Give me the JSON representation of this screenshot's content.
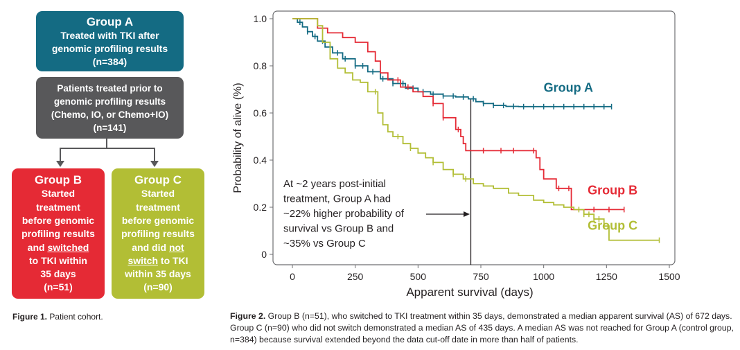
{
  "cohort": {
    "groupA": {
      "title": "Group A",
      "lines": [
        "Treated with TKI after",
        "genomic profiling results",
        "(n=384)"
      ]
    },
    "prior": {
      "lines": [
        "Patients treated prior to",
        "genomic profiling results",
        "(Chemo, IO, or Chemo+IO)",
        "(n=141)"
      ]
    },
    "groupB": {
      "title": "Group B",
      "line1": "Started",
      "line2": "treatment",
      "line3": "before genomic",
      "line4": "profiling results",
      "line5a": "and ",
      "line5b": "switched",
      "line6": "to TKI within",
      "line7": "35 days",
      "line8": "(n=51)"
    },
    "groupC": {
      "title": "Group C",
      "line1": "Started",
      "line2": "treatment",
      "line3": "before genomic",
      "line4": "profiling results",
      "line5": "and did ",
      "line5u": "not",
      "line6u": "switch",
      "line6b": " to TKI",
      "line7": "within 35 days",
      "line8": "(n=90)"
    },
    "colors": {
      "groupA": "#146b83",
      "prior": "#58585a",
      "groupB": "#e52a35",
      "groupC": "#b2be35"
    }
  },
  "figure1_caption": {
    "label": "Figure 1.",
    "text": " Patient cohort."
  },
  "figure2_caption": {
    "label": "Figure 2.",
    "text": " Group B (n=51), who switched to TKI treatment within 35 days, demonstrated a median apparent survival (AS) of 672 days. Group C (n=90) who did not switch demonstrated a median AS of 435 days. A median AS was not reached for Group A (control group, n=384) because survival extended beyond the data cut-off date in more than half of patients."
  },
  "chart_data": {
    "type": "line",
    "title": "",
    "xlabel": "Apparent survival (days)",
    "ylabel": "Probability of alive (%)",
    "xlim": [
      0,
      1500
    ],
    "ylim": [
      0,
      1.0
    ],
    "x_ticks": [
      0,
      250,
      500,
      750,
      1000,
      1250,
      1500
    ],
    "y_ticks": [
      0,
      0.2,
      0.4,
      0.6,
      0.8,
      1.0
    ],
    "y_tick_labels": [
      "0",
      "0.2",
      "0.4",
      "0.6",
      "0.8",
      "1.0"
    ],
    "annotation": [
      "At ~2 years post-initial",
      "treatment, Group A had",
      "~22% higher probability of",
      "survival vs Group B and",
      "~35% vs Group C"
    ],
    "reference_line_x": 710,
    "series": [
      {
        "name": "Group A",
        "color": "#146b83",
        "label_pos": [
          1000,
          0.69
        ],
        "x": [
          0,
          20,
          40,
          60,
          80,
          100,
          130,
          160,
          200,
          250,
          300,
          350,
          400,
          450,
          500,
          550,
          600,
          650,
          700,
          730,
          760,
          800,
          850,
          900,
          1000,
          1100,
          1200,
          1270
        ],
        "y": [
          1.0,
          0.985,
          0.965,
          0.945,
          0.925,
          0.905,
          0.88,
          0.855,
          0.83,
          0.8,
          0.775,
          0.745,
          0.725,
          0.705,
          0.69,
          0.68,
          0.672,
          0.668,
          0.66,
          0.648,
          0.64,
          0.632,
          0.628,
          0.627,
          0.627,
          0.627,
          0.627,
          0.627
        ],
        "censor_x": [
          30,
          60,
          90,
          120,
          150,
          180,
          210,
          250,
          280,
          320,
          360,
          400,
          440,
          480,
          520,
          560,
          600,
          640,
          680,
          720,
          760,
          800,
          840,
          880,
          920,
          960,
          1000,
          1040,
          1080,
          1120,
          1160,
          1200,
          1240,
          1270
        ]
      },
      {
        "name": "Group B",
        "color": "#e52a35",
        "label_pos": [
          1175,
          0.255
        ],
        "x": [
          0,
          90,
          100,
          140,
          200,
          250,
          300,
          330,
          350,
          380,
          430,
          480,
          520,
          560,
          600,
          650,
          670,
          680,
          690,
          760,
          800,
          850,
          900,
          960,
          970,
          985,
          1000,
          1050,
          1100,
          1110,
          1320
        ],
        "y": [
          1.0,
          1.0,
          0.96,
          0.94,
          0.92,
          0.9,
          0.86,
          0.82,
          0.77,
          0.74,
          0.71,
          0.69,
          0.67,
          0.64,
          0.58,
          0.53,
          0.5,
          0.47,
          0.44,
          0.44,
          0.44,
          0.44,
          0.44,
          0.44,
          0.41,
          0.36,
          0.32,
          0.28,
          0.28,
          0.19,
          0.19
        ],
        "censor_x": [
          420,
          460,
          560,
          600,
          660,
          760,
          830,
          880,
          960,
          1060,
          1100,
          1200,
          1260,
          1320
        ]
      },
      {
        "name": "Group C",
        "color": "#b2be35",
        "label_pos": [
          1175,
          0.105
        ],
        "x": [
          0,
          100,
          120,
          150,
          180,
          210,
          240,
          270,
          300,
          340,
          360,
          380,
          400,
          440,
          470,
          500,
          530,
          560,
          600,
          640,
          680,
          720,
          760,
          800,
          860,
          900,
          960,
          1000,
          1040,
          1080,
          1120,
          1160,
          1200,
          1240,
          1260,
          1460
        ],
        "y": [
          1.0,
          0.97,
          0.9,
          0.83,
          0.79,
          0.77,
          0.74,
          0.73,
          0.69,
          0.6,
          0.55,
          0.52,
          0.5,
          0.47,
          0.45,
          0.43,
          0.41,
          0.39,
          0.36,
          0.34,
          0.32,
          0.3,
          0.29,
          0.28,
          0.26,
          0.25,
          0.23,
          0.22,
          0.21,
          0.2,
          0.19,
          0.17,
          0.15,
          0.12,
          0.06,
          0.06
        ],
        "censor_x": [
          330,
          420,
          470,
          560,
          640,
          690,
          1140,
          1160,
          1180,
          1200,
          1220,
          1460
        ]
      }
    ]
  }
}
